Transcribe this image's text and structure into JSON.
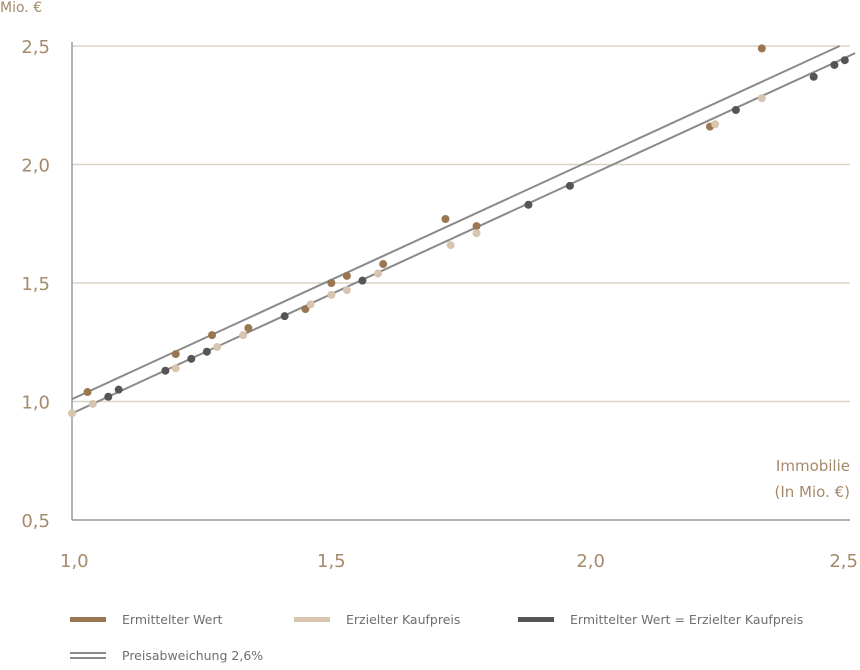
{
  "chart_data": {
    "type": "scatter",
    "y_unit": "Mio. €",
    "xlabel": [
      "Immobilie",
      "(In Mio. €)"
    ],
    "xlim": [
      1.0,
      2.5
    ],
    "ylim": [
      0.5,
      2.5
    ],
    "x_ticks": [
      1.0,
      1.5,
      2.0,
      2.5
    ],
    "x_tick_labels": [
      "1,0",
      "1,5",
      "2,0",
      "2,5"
    ],
    "y_ticks": [
      0.5,
      1.0,
      1.5,
      2.0,
      2.5
    ],
    "y_tick_labels": [
      "0,5",
      "1,0",
      "1,5",
      "2,0",
      "2,5"
    ],
    "grid": "horizontal",
    "legend_position": "bottom",
    "series": [
      {
        "name": "Ermittelter Wert",
        "color": "#9a7651",
        "points": [
          [
            1.03,
            1.04
          ],
          [
            1.2,
            1.2
          ],
          [
            1.27,
            1.28
          ],
          [
            1.34,
            1.31
          ],
          [
            1.45,
            1.39
          ],
          [
            1.5,
            1.5
          ],
          [
            1.53,
            1.53
          ],
          [
            1.6,
            1.58
          ],
          [
            1.72,
            1.77
          ],
          [
            1.78,
            1.74
          ],
          [
            2.23,
            2.16
          ],
          [
            2.33,
            2.49
          ]
        ]
      },
      {
        "name": "Erzielter Kaufpreis",
        "color": "#d7c5b0",
        "points": [
          [
            1.0,
            0.95
          ],
          [
            1.04,
            0.99
          ],
          [
            1.2,
            1.14
          ],
          [
            1.28,
            1.23
          ],
          [
            1.33,
            1.28
          ],
          [
            1.46,
            1.41
          ],
          [
            1.5,
            1.45
          ],
          [
            1.53,
            1.47
          ],
          [
            1.59,
            1.54
          ],
          [
            1.73,
            1.66
          ],
          [
            1.78,
            1.71
          ],
          [
            2.24,
            2.17
          ],
          [
            2.33,
            2.28
          ]
        ]
      },
      {
        "name": "Ermittelter Wert = Erzielter Kaufpreis",
        "color": "#555555",
        "points": [
          [
            1.07,
            1.02
          ],
          [
            1.09,
            1.05
          ],
          [
            1.18,
            1.13
          ],
          [
            1.23,
            1.18
          ],
          [
            1.26,
            1.21
          ],
          [
            1.41,
            1.36
          ],
          [
            1.56,
            1.51
          ],
          [
            1.88,
            1.83
          ],
          [
            1.96,
            1.91
          ],
          [
            2.28,
            2.23
          ],
          [
            2.43,
            2.37
          ],
          [
            2.47,
            2.42
          ],
          [
            2.49,
            2.44
          ]
        ]
      }
    ],
    "reference_lines": {
      "name": "Preisabweichung 2,6%",
      "color": "#8a8a8a",
      "lines": [
        {
          "x1": 1.0,
          "y1": 1.01,
          "x2": 2.48,
          "y2": 2.5
        },
        {
          "x1": 1.0,
          "y1": 0.95,
          "x2": 2.51,
          "y2": 2.47
        }
      ]
    },
    "colors": {
      "grid": "#ddd3c4",
      "axis": "#9a9a9a",
      "text": "#a58a6b"
    }
  }
}
